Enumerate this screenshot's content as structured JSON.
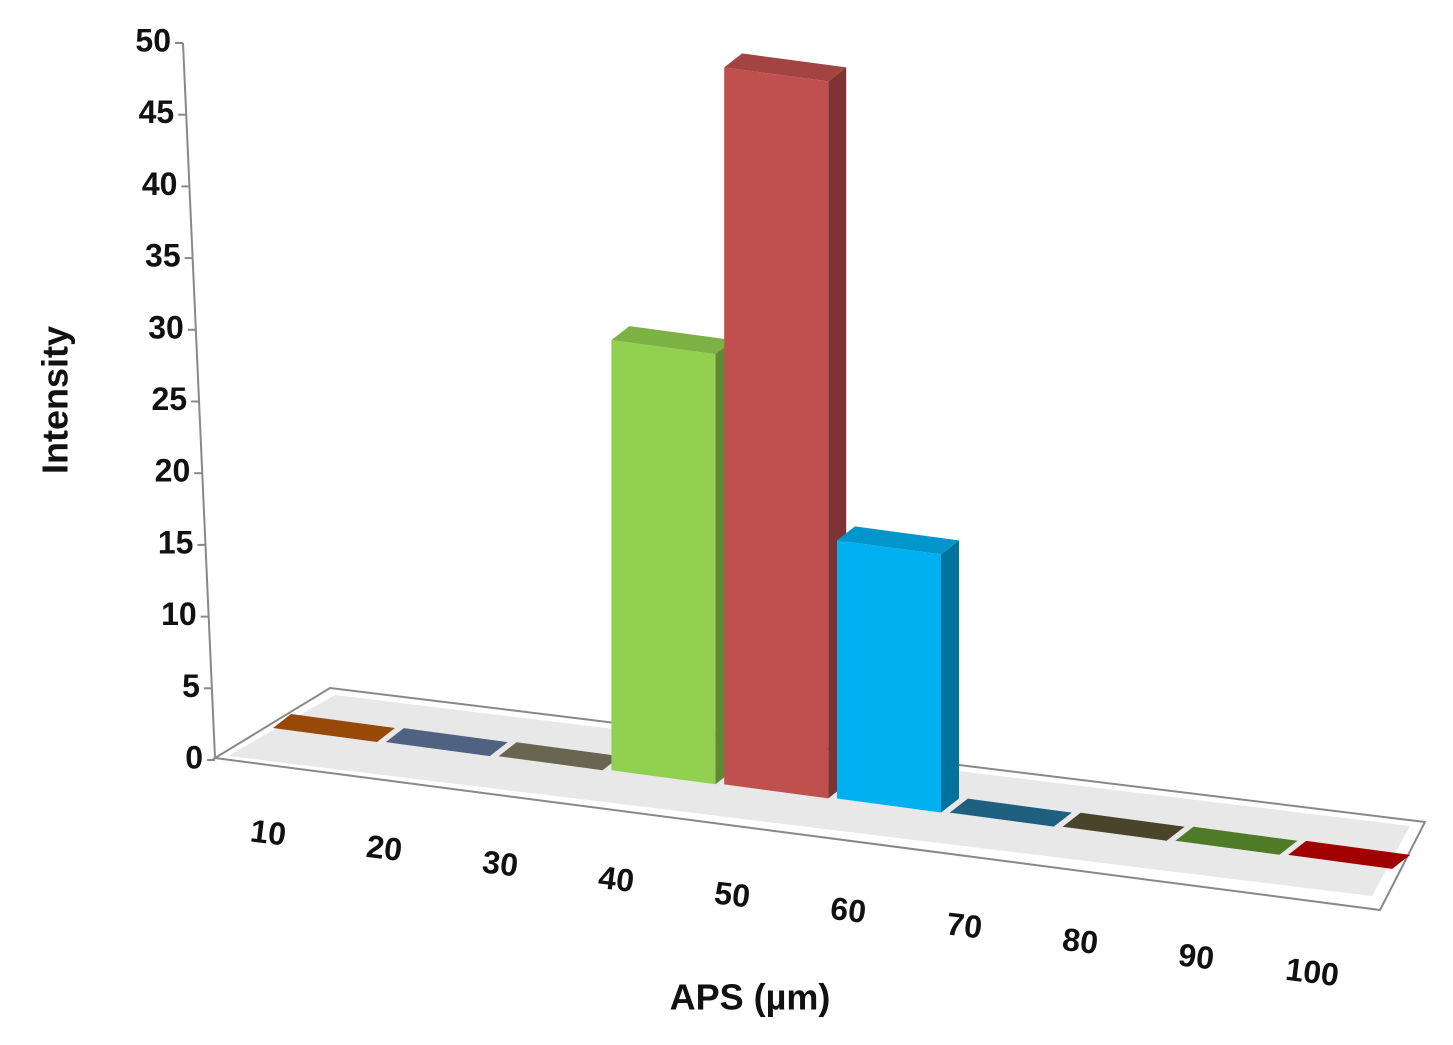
{
  "chart_data": {
    "type": "bar3d",
    "x_label": "APS (µm)",
    "y_label": "Intensity",
    "categories": [
      "10",
      "20",
      "30",
      "40",
      "50",
      "60",
      "70",
      "80",
      "90",
      "100"
    ],
    "values": [
      0,
      0,
      0,
      30,
      50,
      18,
      0,
      0,
      0,
      0
    ],
    "colors": [
      "#984807",
      "#4f6282",
      "#686650",
      "#92d050",
      "#c0504d",
      "#00b0f0",
      "#1f5f80",
      "#4a452a",
      "#4f7a28",
      "#a00000"
    ],
    "ylim": [
      0,
      50
    ],
    "yticks": [
      0,
      5,
      10,
      15,
      20,
      25,
      30,
      35,
      40,
      45,
      50
    ],
    "grid": false
  }
}
